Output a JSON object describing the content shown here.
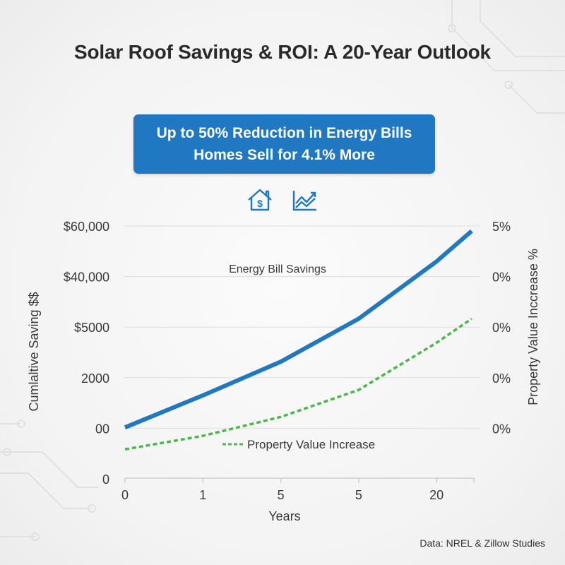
{
  "title": "Solar Roof Savings & ROI: A 20-Year Outlook",
  "banner": {
    "line1": "Up to 50% Reduction in Energy Bills",
    "line2": "Homes Sell for 4.1% More"
  },
  "icons": [
    "house-dollar-icon",
    "trend-chart-icon"
  ],
  "source": "Data: NREL & Zillow Studies",
  "chart_data": {
    "type": "line",
    "title": "",
    "xlabel": "Years",
    "ylabel_left": "Cumlaltive Saving $$",
    "ylabel_right": "Property Value Inccrease %",
    "x_tick_labels": [
      "0",
      "1",
      "5",
      "5",
      "20"
    ],
    "y_left_tick_labels": [
      "0",
      "00",
      "2000",
      "$5000",
      "$40,000",
      "$60,000"
    ],
    "y_right_tick_labels": [
      "0%",
      "0%",
      "0%",
      "0%",
      "5%"
    ],
    "ylim": [
      0,
      60000
    ],
    "grid": true,
    "x": [
      0,
      1,
      2,
      3,
      4,
      4.45
    ],
    "series": [
      {
        "name": "Energy Bill Savings",
        "color": "#1f78c1",
        "style": "solid",
        "values": [
          12200,
          19800,
          27800,
          38000,
          51600,
          58800
        ]
      },
      {
        "name": "Property Value Increase",
        "color": "#4cb84a",
        "style": "dotted",
        "values": [
          7000,
          10200,
          14700,
          21100,
          32300,
          38000
        ]
      }
    ]
  }
}
